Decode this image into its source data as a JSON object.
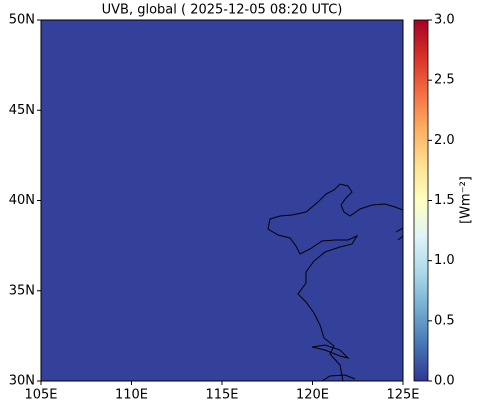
{
  "chart_data": {
    "type": "map",
    "title": "UVB, global ( 2025-12-05 08:20 UTC)",
    "xlim": [
      105,
      125
    ],
    "xticks": [
      {
        "value": 105,
        "label": "105E"
      },
      {
        "value": 110,
        "label": "110E"
      },
      {
        "value": 115,
        "label": "115E"
      },
      {
        "value": 120,
        "label": "120E"
      },
      {
        "value": 125,
        "label": "125E"
      }
    ],
    "ylim": [
      30,
      50
    ],
    "yticks": [
      {
        "value": 30,
        "label": "30N"
      },
      {
        "value": 35,
        "label": "35N"
      },
      {
        "value": 40,
        "label": "40N"
      },
      {
        "value": 45,
        "label": "45N"
      },
      {
        "value": 50,
        "label": "50N"
      }
    ],
    "field_value": 0.05,
    "colorbar": {
      "label": "[Wm⁻²]",
      "lim": [
        0,
        3
      ],
      "ticks": [
        {
          "value": 0,
          "label": "0.0"
        },
        {
          "value": 0.5,
          "label": "0.5"
        },
        {
          "value": 1,
          "label": "1.0"
        },
        {
          "value": 1.5,
          "label": "1.5"
        },
        {
          "value": 2,
          "label": "2.0"
        },
        {
          "value": 2.5,
          "label": "2.5"
        },
        {
          "value": 3,
          "label": "3.0"
        }
      ],
      "colors": [
        "#313695",
        "#4575b4",
        "#74add1",
        "#abd9e9",
        "#e0f3f8",
        "#ffffbf",
        "#fee090",
        "#fdae61",
        "#f46d43",
        "#d73027",
        "#a50026"
      ]
    }
  }
}
